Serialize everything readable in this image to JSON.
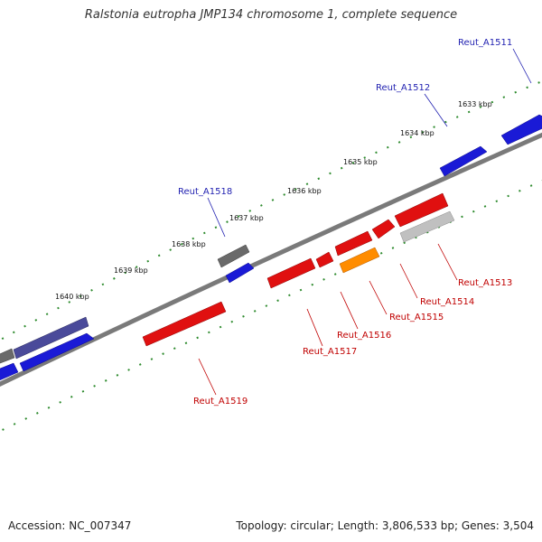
{
  "title": "Ralstonia eutropha JMP134 chromosome 1, complete sequence",
  "footer": {
    "accession": "Accession: NC_007347",
    "summary": "Topology: circular; Length: 3,806,533 bp; Genes: 3,504"
  },
  "colors": {
    "background": "#ffffff",
    "backbone": "#7a7a7a",
    "tick_dots": "#2e8b2e",
    "cds_forward": "#1a1ad6",
    "cds_reverse": "#e01010",
    "cds_unknown": "#6a6a6a",
    "cds_dark": "#4a4a9a",
    "cds_orange": "#ff8c00",
    "cds_lightgray": "#c0c0c0",
    "label_forward": "#1f1fb0",
    "label_reverse": "#c00000"
  },
  "tick_labels": [
    "1633 kbp",
    "1634 kbp",
    "1635 kbp",
    "1636 kbp",
    "1637 kbp",
    "1638 kbp",
    "1639 kbp",
    "1640 kbp"
  ],
  "gene_labels": {
    "forward": [
      "Reut_A1511",
      "Reut_A1512",
      "Reut_A1518"
    ],
    "reverse": [
      "Reut_A1513",
      "Reut_A1514",
      "Reut_A1515",
      "Reut_A1516",
      "Reut_A1517",
      "Reut_A1519"
    ]
  }
}
